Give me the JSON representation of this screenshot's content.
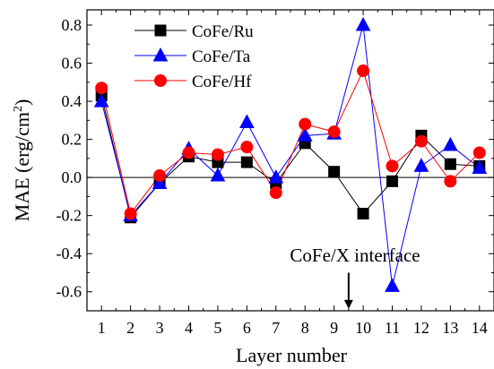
{
  "chart_data": {
    "type": "line",
    "xlabel": "Layer number",
    "ylabel": "MAE (erg/cm²)",
    "ylabel_parts": {
      "main": "MAE (erg/cm",
      "sup": "2",
      "close": ")"
    },
    "x": [
      1,
      2,
      3,
      4,
      5,
      6,
      7,
      8,
      9,
      10,
      11,
      12,
      13,
      14
    ],
    "xlim": [
      0.5,
      14.5
    ],
    "ylim": [
      -0.7,
      0.88
    ],
    "x_ticks": [
      "1",
      "2",
      "3",
      "4",
      "5",
      "6",
      "7",
      "8",
      "9",
      "10",
      "11",
      "12",
      "13",
      "14"
    ],
    "y_ticks": [
      {
        "value": 0.8,
        "label": "0.8"
      },
      {
        "value": 0.6,
        "label": "0.6"
      },
      {
        "value": 0.4,
        "label": "0.4"
      },
      {
        "value": 0.2,
        "label": "0.2"
      },
      {
        "value": 0.0,
        "label": "0.0"
      },
      {
        "value": -0.2,
        "label": "-0.2"
      },
      {
        "value": -0.4,
        "label": "-0.4"
      },
      {
        "value": -0.6,
        "label": "-0.6"
      }
    ],
    "zero_line": true,
    "grid": false,
    "legend_position": "top-left",
    "series": [
      {
        "name": "CoFe/Ru",
        "color": "#000000",
        "marker": "square",
        "values": [
          0.43,
          -0.21,
          -0.03,
          0.11,
          0.08,
          0.08,
          -0.03,
          0.18,
          0.03,
          -0.19,
          -0.02,
          0.22,
          0.07,
          0.06
        ]
      },
      {
        "name": "CoFe/Ta",
        "color": "#0000ff",
        "marker": "triangle",
        "values": [
          0.4,
          -0.2,
          -0.03,
          0.15,
          0.01,
          0.29,
          0.0,
          0.22,
          0.23,
          0.8,
          -0.57,
          0.06,
          0.17,
          0.05
        ]
      },
      {
        "name": "CoFe/Hf",
        "color": "#ff0000",
        "marker": "circle",
        "values": [
          0.47,
          -0.19,
          0.01,
          0.13,
          0.12,
          0.16,
          -0.08,
          0.28,
          0.24,
          0.56,
          0.06,
          0.19,
          -0.02,
          0.13
        ]
      }
    ],
    "annotation": {
      "text": "CoFe/X interface",
      "arrow_at_x": 9.5,
      "arrow_from_y": -0.5,
      "arrow_to_y": -0.69
    }
  }
}
